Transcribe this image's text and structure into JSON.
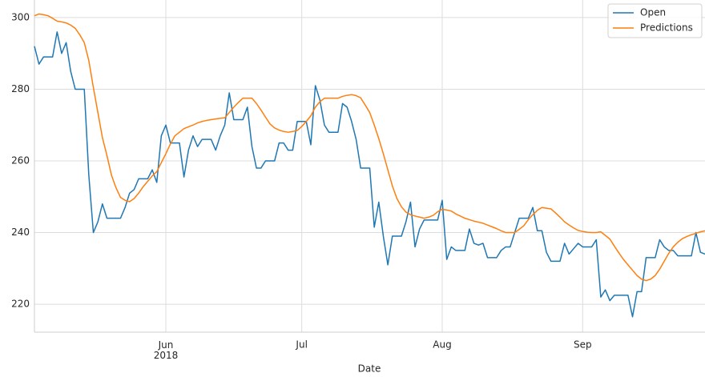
{
  "chart_data": {
    "type": "line",
    "xlabel": "Date",
    "categories": [
      null,
      null,
      null,
      null,
      null,
      null,
      null,
      null,
      null,
      null,
      null,
      null,
      null,
      null,
      null,
      null,
      null,
      null,
      null,
      null,
      null,
      null,
      null,
      null,
      null,
      null,
      null,
      null,
      null,
      "Jun\n2018",
      null,
      null,
      null,
      null,
      null,
      null,
      null,
      null,
      null,
      null,
      null,
      null,
      null,
      null,
      null,
      null,
      null,
      null,
      null,
      null,
      null,
      null,
      null,
      null,
      null,
      null,
      null,
      null,
      null,
      "Jul",
      null,
      null,
      null,
      null,
      null,
      null,
      null,
      null,
      null,
      null,
      null,
      null,
      null,
      null,
      null,
      null,
      null,
      null,
      null,
      null,
      null,
      null,
      null,
      null,
      null,
      null,
      null,
      null,
      null,
      null,
      "Aug",
      null,
      null,
      null,
      null,
      null,
      null,
      null,
      null,
      null,
      null,
      null,
      null,
      null,
      null,
      null,
      null,
      null,
      null,
      null,
      null,
      null,
      null,
      null,
      null,
      null,
      null,
      null,
      null,
      null,
      null,
      "Sep",
      null,
      null,
      null,
      null,
      null,
      null,
      null,
      null,
      null,
      null,
      null,
      null,
      null,
      null,
      null,
      null,
      null,
      null,
      null,
      null,
      null,
      null,
      null,
      null,
      null,
      null,
      null
    ],
    "series": [
      {
        "name": "Open",
        "color": "#1f77b4",
        "values": [
          292,
          287,
          289,
          289,
          289,
          296,
          290,
          293,
          285,
          280,
          280,
          280,
          256,
          240,
          243,
          248,
          244,
          244,
          244,
          244,
          247,
          251,
          252,
          255,
          255,
          255,
          257.5,
          254,
          267,
          270,
          265,
          265,
          265,
          255.5,
          263,
          267,
          264,
          266,
          266,
          266,
          263,
          267,
          270,
          279,
          271.5,
          271.5,
          271.5,
          275,
          264,
          258,
          258,
          260,
          260,
          260,
          265,
          265,
          263,
          263,
          271,
          271,
          271,
          264.5,
          281,
          277,
          270,
          268,
          268,
          268,
          276,
          275,
          271,
          266,
          258,
          258,
          258,
          241.5,
          248.5,
          239,
          231,
          239,
          239,
          239,
          243,
          248.5,
          236,
          241,
          243.5,
          243.5,
          243.5,
          243.5,
          249,
          232.5,
          236,
          235,
          235,
          235,
          241,
          237,
          236.5,
          237,
          233,
          233,
          233,
          235,
          236,
          236,
          240,
          244,
          244,
          244,
          247,
          240.5,
          240.5,
          234.5,
          232,
          232,
          232,
          237,
          234,
          235.5,
          237,
          236,
          236,
          236,
          238,
          222,
          224,
          221,
          222.5,
          222.5,
          222.5,
          222.5,
          216.5,
          223.5,
          223.5,
          233,
          233,
          233,
          238,
          236,
          235,
          235,
          233.5,
          233.5,
          233.5,
          233.5,
          240,
          234.5,
          234
        ]
      },
      {
        "name": "Predictions",
        "color": "#ff7f0e",
        "values": [
          300.5,
          301,
          300.8,
          300.5,
          299.8,
          299,
          298.8,
          298.5,
          297.9,
          297,
          295.2,
          293,
          288,
          280.5,
          273.5,
          266.5,
          261.5,
          256,
          252.5,
          249.8,
          249,
          248.6,
          249.5,
          251,
          252.8,
          254.3,
          255.8,
          257,
          259.5,
          262,
          264.7,
          267,
          268,
          269,
          269.5,
          270,
          270.6,
          271,
          271.3,
          271.5,
          271.7,
          271.9,
          272,
          273.5,
          275,
          276.3,
          277.5,
          277.5,
          277.5,
          276,
          274.2,
          272.2,
          270.3,
          269.2,
          268.6,
          268.2,
          268,
          268.2,
          268.5,
          269.6,
          271,
          272.6,
          275,
          276.5,
          277.5,
          277.5,
          277.5,
          277.5,
          278,
          278.3,
          278.5,
          278.2,
          277.6,
          275.6,
          273.5,
          270,
          266.2,
          262,
          257.5,
          253,
          249.5,
          247.2,
          245.7,
          245,
          244.6,
          244.3,
          244,
          244.3,
          244.8,
          245.8,
          246.5,
          246.3,
          246,
          245.2,
          244.6,
          244,
          243.6,
          243.2,
          242.9,
          242.6,
          242.1,
          241.6,
          241.1,
          240.5,
          240,
          240,
          240,
          240.9,
          241.9,
          243.6,
          245,
          246.2,
          247,
          246.8,
          246.6,
          245.5,
          244.3,
          243,
          242.1,
          241.3,
          240.6,
          240.3,
          240.1,
          240,
          240,
          240.2,
          239.2,
          238.2,
          236.2,
          234.3,
          232.5,
          231,
          229.5,
          228,
          227,
          226.6,
          227,
          228,
          229.8,
          232,
          234.2,
          236,
          237.3,
          238.3,
          238.9,
          239.4,
          239.8,
          240.2,
          240.5
        ]
      }
    ],
    "ylim": [
      212.2,
      304.9
    ],
    "yticks": [
      220,
      240,
      260,
      280,
      300
    ],
    "grid": true,
    "legend": "upper right"
  }
}
